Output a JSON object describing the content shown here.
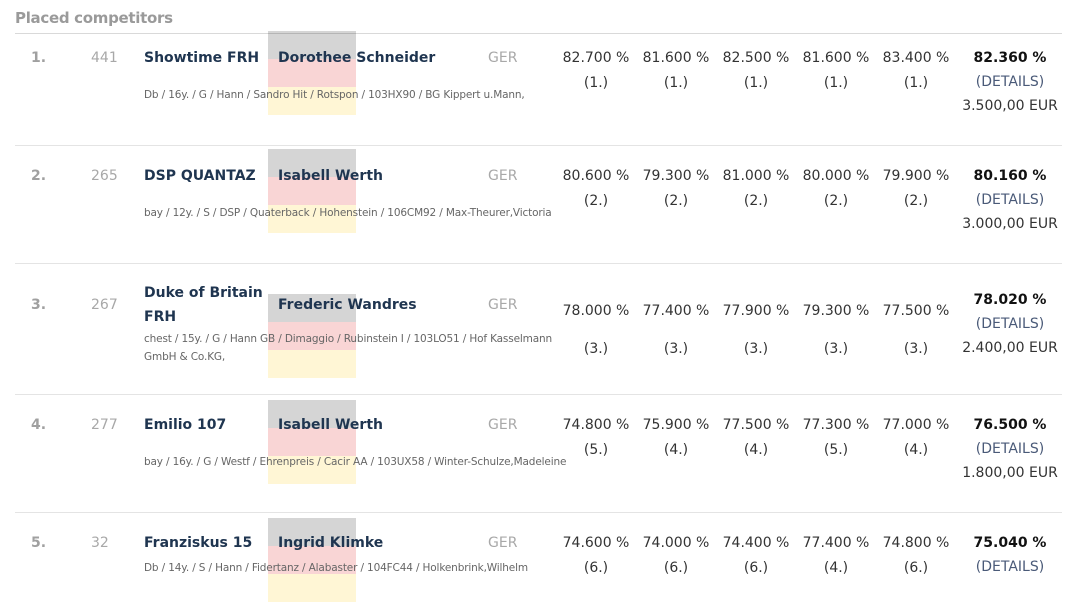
{
  "section_title": "Placed competitors",
  "flag_colors": [
    "#000000",
    "#dd0000",
    "#ffce00"
  ],
  "rows": [
    {
      "rank": "1.",
      "bib": "441",
      "horse": "Showtime FRH",
      "rider": "Dorothee Schneider",
      "nation": "GER",
      "details": "Db / 16y. / G / Hann / Sandro Hit / Rotspon / 103HX90 / BG Kippert u.Mann,",
      "scores": [
        {
          "pct": "82.700 %",
          "place": "(1.)"
        },
        {
          "pct": "81.600 %",
          "place": "(1.)"
        },
        {
          "pct": "82.500 %",
          "place": "(1.)"
        },
        {
          "pct": "81.600 %",
          "place": "(1.)"
        },
        {
          "pct": "83.400 %",
          "place": "(1.)"
        }
      ],
      "total": "82.360 %",
      "details_link": "(DETAILS)",
      "prize": "3.500,00 EUR"
    },
    {
      "rank": "2.",
      "bib": "265",
      "horse": "DSP QUANTAZ",
      "rider": "Isabell Werth",
      "nation": "GER",
      "details": "bay / 12y. / S / DSP / Quaterback / Hohenstein / 106CM92 / Max-Theurer,Victoria",
      "scores": [
        {
          "pct": "80.600 %",
          "place": "(2.)"
        },
        {
          "pct": "79.300 %",
          "place": "(2.)"
        },
        {
          "pct": "81.000 %",
          "place": "(2.)"
        },
        {
          "pct": "80.000 %",
          "place": "(2.)"
        },
        {
          "pct": "79.900 %",
          "place": "(2.)"
        }
      ],
      "total": "80.160 %",
      "details_link": "(DETAILS)",
      "prize": "3.000,00 EUR"
    },
    {
      "rank": "3.",
      "bib": "267",
      "horse": "Duke of Britain FRH",
      "rider": "Frederic Wandres",
      "nation": "GER",
      "details": "chest / 15y. / G / Hann GB / Dimaggio / Rubinstein I / 103LO51 / Hof Kasselmann GmbH & Co.KG,",
      "scores": [
        {
          "pct": "78.000 %",
          "place": "(3.)"
        },
        {
          "pct": "77.400 %",
          "place": "(3.)"
        },
        {
          "pct": "77.900 %",
          "place": "(3.)"
        },
        {
          "pct": "79.300 %",
          "place": "(3.)"
        },
        {
          "pct": "77.500 %",
          "place": "(3.)"
        }
      ],
      "total": "78.020 %",
      "details_link": "(DETAILS)",
      "prize": "2.400,00 EUR"
    },
    {
      "rank": "4.",
      "bib": "277",
      "horse": "Emilio 107",
      "rider": "Isabell Werth",
      "nation": "GER",
      "details": "bay / 16y. / G / Westf / Ehrenpreis / Cacir AA / 103UX58 / Winter-Schulze,Madeleine",
      "scores": [
        {
          "pct": "74.800 %",
          "place": "(5.)"
        },
        {
          "pct": "75.900 %",
          "place": "(4.)"
        },
        {
          "pct": "77.500 %",
          "place": "(4.)"
        },
        {
          "pct": "77.300 %",
          "place": "(5.)"
        },
        {
          "pct": "77.000 %",
          "place": "(4.)"
        }
      ],
      "total": "76.500 %",
      "details_link": "(DETAILS)",
      "prize": "1.800,00 EUR"
    },
    {
      "rank": "5.",
      "bib": "32",
      "horse": "Franziskus 15",
      "rider": "Ingrid Klimke",
      "nation": "GER",
      "details": "Db / 14y. / S / Hann / Fidertanz / Alabaster / 104FC44 / Holkenbrink,Wilhelm",
      "scores": [
        {
          "pct": "74.600 %",
          "place": "(6.)"
        },
        {
          "pct": "74.000 %",
          "place": "(6.)"
        },
        {
          "pct": "74.400 %",
          "place": "(6.)"
        },
        {
          "pct": "77.400 %",
          "place": "(4.)"
        },
        {
          "pct": "74.800 %",
          "place": "(6.)"
        }
      ],
      "total": "75.040 %",
      "details_link": "(DETAILS)",
      "prize": ""
    }
  ]
}
